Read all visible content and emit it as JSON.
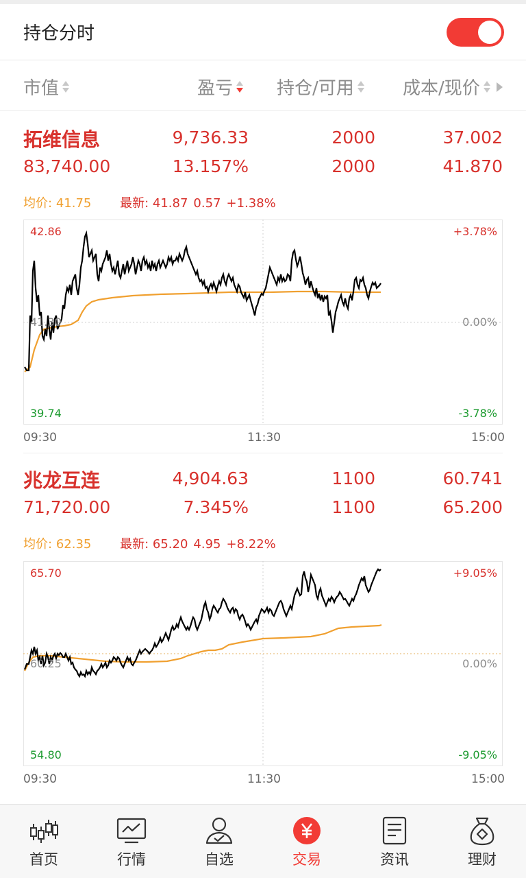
{
  "header": {
    "title": "持仓分时",
    "toggle_on": true,
    "toggle_color": "#f23b35"
  },
  "columns": [
    {
      "label": "市值",
      "sort": "none"
    },
    {
      "label": "盈亏",
      "sort": "desc"
    },
    {
      "label": "持仓/可用",
      "sort": "none"
    },
    {
      "label": "成本/现价",
      "sort": "none"
    }
  ],
  "stocks": [
    {
      "name": "拓维信息",
      "market_value": "83,740.00",
      "profit": "9,736.33",
      "profit_pct": "13.157%",
      "position": "2000",
      "available": "2000",
      "cost": "37.002",
      "price": "41.870",
      "avg_label": "均价:",
      "avg_value": "41.75",
      "latest_label": "最新:",
      "latest_value": "41.87",
      "change": "0.57",
      "change_pct": "+1.38%",
      "chart": {
        "high": "42.86",
        "mid": "41.30",
        "low": "39.74",
        "pct_high": "+3.78%",
        "pct_mid": "0.00%",
        "pct_low": "-3.78%",
        "time_start": "09:30",
        "time_mid": "11:30",
        "time_end": "15:00"
      }
    },
    {
      "name": "兆龙互连",
      "market_value": "71,720.00",
      "profit": "4,904.63",
      "profit_pct": "7.345%",
      "position": "1100",
      "available": "1100",
      "cost": "60.741",
      "price": "65.200",
      "avg_label": "均价:",
      "avg_value": "62.35",
      "latest_label": "最新:",
      "latest_value": "65.20",
      "change": "4.95",
      "change_pct": "+8.22%",
      "chart": {
        "high": "65.70",
        "mid": "60.25",
        "low": "54.80",
        "pct_high": "+9.05%",
        "pct_mid": "0.00%",
        "pct_low": "-9.05%",
        "time_start": "09:30",
        "time_mid": "11:30",
        "time_end": "15:00"
      }
    }
  ],
  "tabs": [
    {
      "label": "首页",
      "icon": "candlestick-icon",
      "active": false
    },
    {
      "label": "行情",
      "icon": "chart-monitor-icon",
      "active": false
    },
    {
      "label": "自选",
      "icon": "user-check-icon",
      "active": false
    },
    {
      "label": "交易",
      "icon": "yuan-icon",
      "active": true
    },
    {
      "label": "资讯",
      "icon": "document-icon",
      "active": false
    },
    {
      "label": "理财",
      "icon": "money-bag-icon",
      "active": false
    }
  ],
  "colors": {
    "accent": "#f23b35",
    "price_up": "#d8312c",
    "price_down": "#1b9a2e",
    "avg_line": "#f0a030"
  }
}
